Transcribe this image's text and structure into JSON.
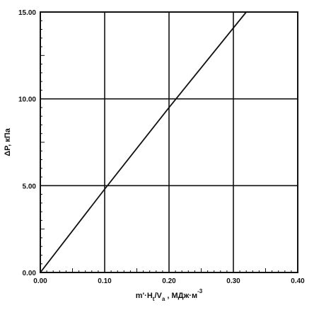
{
  "chart_data": {
    "type": "line",
    "title": "",
    "xlabel": "m'·H_t/V_a , МДж·м^-3",
    "xlabel_parts": {
      "main": "m'·H",
      "sub1": "t",
      "mid": "/V",
      "sub2": "a",
      "tail": " , МДж·м",
      "sup": "-3"
    },
    "ylabel": "ΔP, кПа",
    "xlim": [
      0.0,
      0.4
    ],
    "ylim": [
      0.0,
      15.0
    ],
    "x_ticks": [
      "0.00",
      "0.10",
      "0.20",
      "0.30",
      "0.40"
    ],
    "y_ticks": [
      "0.00",
      "5.00",
      "10.00",
      "15.00"
    ],
    "grid": true,
    "series": [
      {
        "x": [
          0.0,
          0.1,
          0.2,
          0.32
        ],
        "y": [
          0.0,
          4.8,
          9.5,
          15.0
        ]
      }
    ]
  },
  "colors": {
    "line": "#111111",
    "grid": "#111111",
    "background": "#ffffff"
  }
}
